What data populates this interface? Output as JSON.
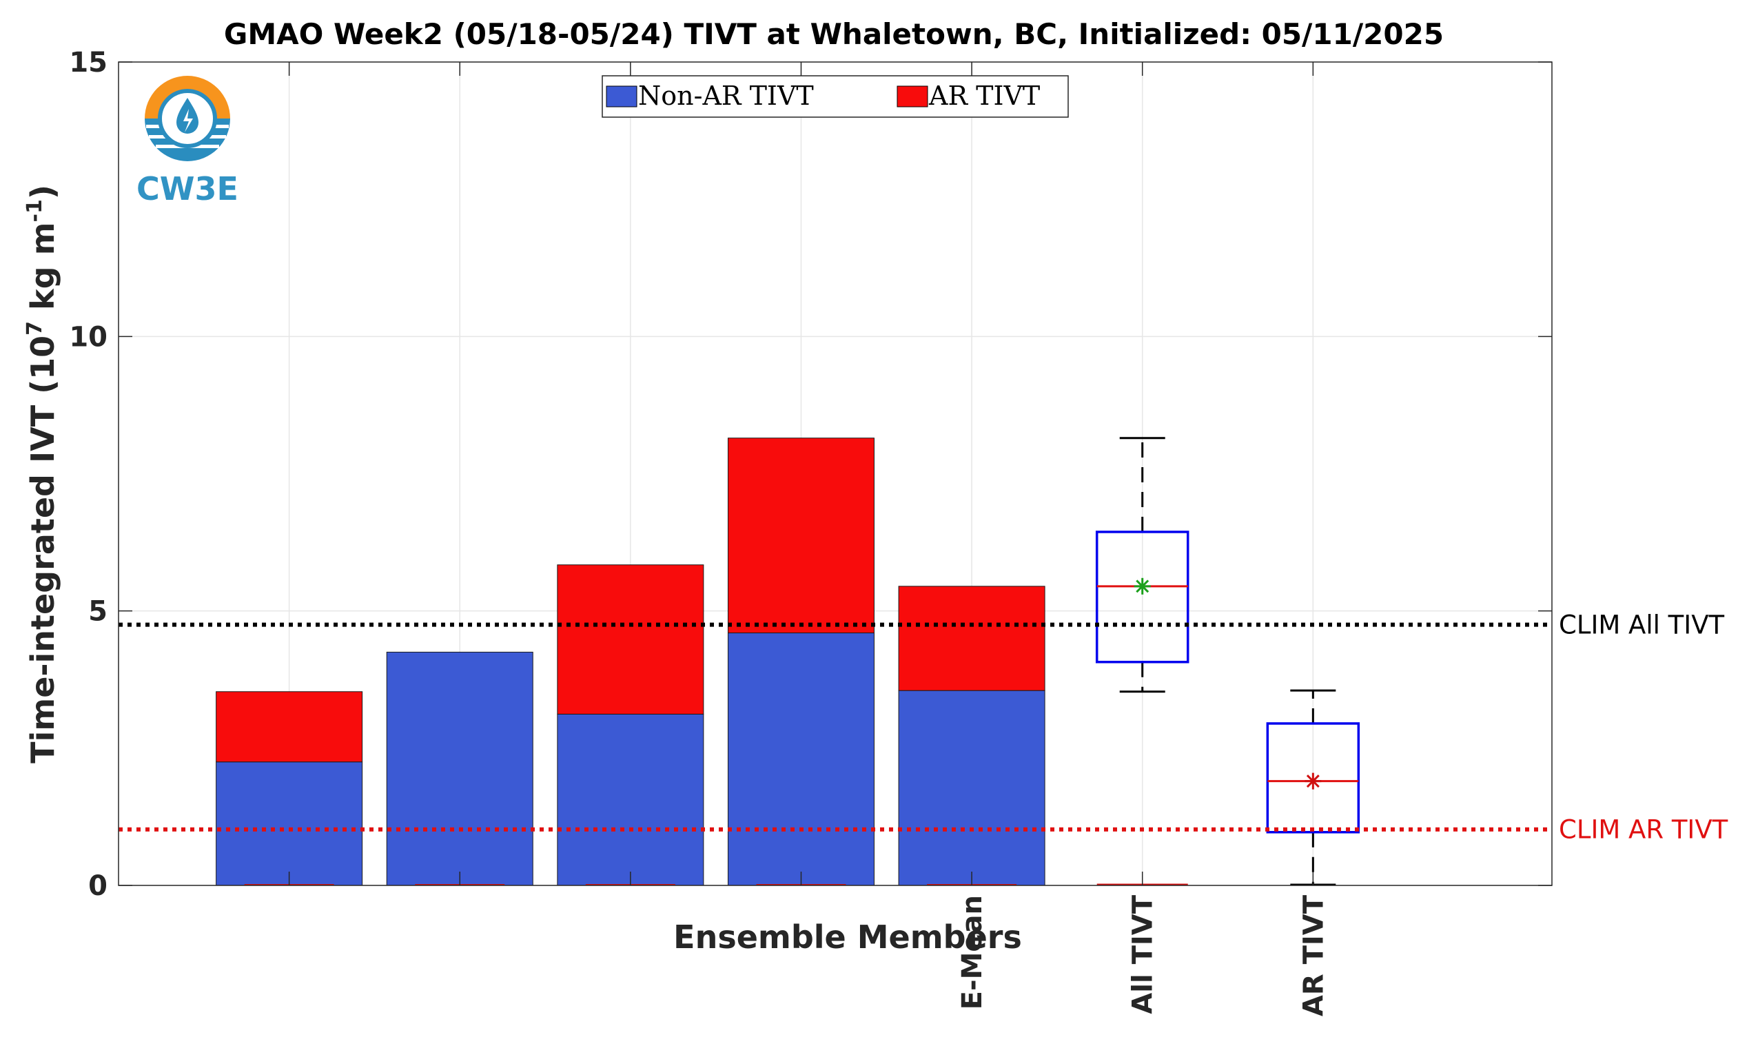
{
  "chart_data": {
    "type": "bar",
    "title": "GMAO Week2 (05/18-05/24) TIVT at Whaletown, BC, Initialized: 05/11/2025",
    "xlabel": "Ensemble Members",
    "ylabel": "Time-integrated IVT (10",
    "ylabel_exp": "7",
    "ylabel_unit": " kg m",
    "ylabel_exp2": "-1",
    "ylabel_close": ")",
    "ylim": [
      0,
      15
    ],
    "yticks": [
      0,
      5,
      10,
      15
    ],
    "grid": true,
    "legend_position": "top-center",
    "series": [
      {
        "name": "Non-AR TIVT",
        "color": "#3c5ad4",
        "values": [
          2.25,
          4.25,
          3.12,
          4.6,
          3.55
        ]
      },
      {
        "name": "AR TIVT",
        "color": "#f80c0c",
        "values": [
          1.28,
          0.0,
          2.72,
          3.55,
          1.9
        ]
      }
    ],
    "totals": [
      3.53,
      4.25,
      5.84,
      8.15,
      5.45
    ],
    "bar_tick_labels": [
      "",
      "",
      "",
      "",
      "E-Mean"
    ],
    "boxplots": [
      {
        "label": "All TIVT",
        "min": 3.53,
        "q1": 4.07,
        "median": 5.45,
        "mean": 5.45,
        "q3": 6.44,
        "max": 8.15,
        "mean_color": "#1ca01c"
      },
      {
        "label": "AR TIVT",
        "min": 0.0,
        "q1": 0.97,
        "median": 1.9,
        "mean": 1.9,
        "q3": 2.95,
        "max": 3.55,
        "mean_color": "#d01010"
      }
    ],
    "reference_lines": [
      {
        "label": "CLIM All TIVT",
        "value": 4.75,
        "color": "#000000"
      },
      {
        "label": "CLIM AR TIVT",
        "value": 1.02,
        "color": "#e01010"
      }
    ]
  },
  "logo": {
    "text": "CW3E",
    "colors": {
      "orange": "#f7941d",
      "blue": "#2a8dbf",
      "text": "#3193c4"
    }
  }
}
